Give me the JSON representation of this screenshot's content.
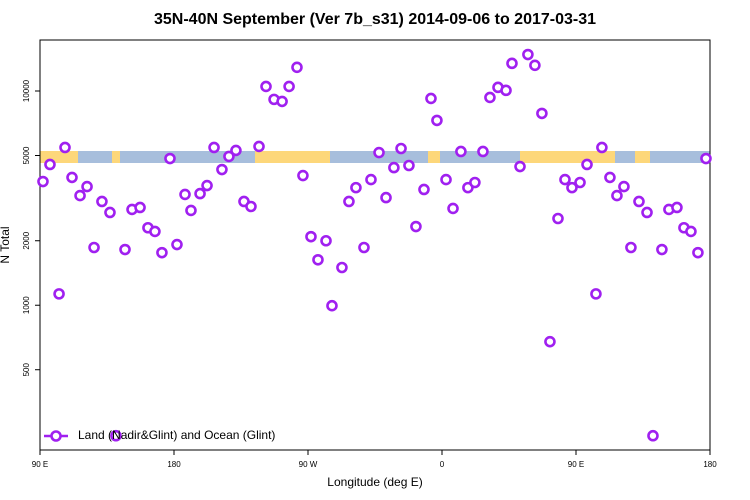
{
  "chart_data": {
    "type": "scatter",
    "title": "35N-40N September (Ver 7b_s31)   2014-09-06 to 2017-03-31",
    "x_label": "Longitude (deg E)",
    "y_label": "N Total",
    "xlim": [
      90,
      540
    ],
    "xticks": [
      {
        "value": 90,
        "label": "90 E"
      },
      {
        "value": 180,
        "label": "180"
      },
      {
        "value": 270,
        "label": "90 W"
      },
      {
        "value": 360,
        "label": "0"
      },
      {
        "value": 450,
        "label": "90 E"
      },
      {
        "value": 540,
        "label": "180"
      }
    ],
    "ylim": [
      211,
      17300
    ],
    "yticks": [
      500,
      1000,
      2000,
      5000,
      10000
    ],
    "ylog": true,
    "legend": "bottomleft",
    "series": [
      {
        "name": "Land (Nadir&Glint) and Ocean (Glint)",
        "color": "#a020f0",
        "x": [
          92.0,
          96.7,
          102.8,
          106.8,
          111.5,
          116.9,
          121.6,
          126.3,
          131.6,
          137.0,
          141.0,
          147.1,
          151.8,
          157.2,
          162.5,
          167.2,
          171.9,
          177.3,
          182.0,
          187.4,
          191.4,
          197.5,
          202.2,
          206.9,
          212.2,
          216.9,
          221.6,
          227.0,
          231.7,
          237.1,
          241.8,
          247.2,
          252.6,
          257.3,
          262.6,
          266.6,
          272.0,
          276.7,
          282.1,
          286.1,
          292.8,
          297.5,
          302.2,
          307.6,
          312.3,
          317.7,
          322.4,
          327.7,
          332.5,
          337.8,
          342.5,
          347.9,
          352.6,
          356.6,
          362.7,
          367.4,
          372.7,
          377.4,
          382.1,
          387.5,
          392.2,
          397.6,
          403.0,
          407.0,
          412.4,
          417.7,
          422.4,
          427.1,
          432.5,
          437.9,
          442.6,
          447.3,
          452.7,
          457.4,
          463.4,
          467.4,
          472.8,
          477.5,
          482.2,
          486.9,
          492.3,
          497.7,
          501.7,
          507.7,
          512.4,
          517.8,
          522.5,
          527.2,
          531.9,
          537.3
        ],
        "values": [
          3780,
          4540,
          1130,
          5450,
          3950,
          3250,
          3580,
          1860,
          3050,
          2710,
          246,
          1820,
          2800,
          2860,
          2300,
          2210,
          1760,
          4840,
          1920,
          3290,
          2770,
          3320,
          3620,
          5450,
          4300,
          4950,
          5280,
          3050,
          2890,
          5510,
          10500,
          9140,
          8940,
          10500,
          12900,
          4030,
          2090,
          1630,
          2000,
          995,
          1500,
          3050,
          3540,
          1860,
          3860,
          5160,
          3180,
          4390,
          5390,
          4490,
          2330,
          3470,
          9230,
          7290,
          3860,
          2830,
          5220,
          3540,
          3740,
          5220,
          9330,
          10400,
          10070,
          13460,
          4440,
          14800,
          13180,
          7860,
          676,
          2540,
          3860,
          3540,
          3740,
          4540,
          1130,
          5450,
          3950,
          3250,
          3580,
          1860,
          3050,
          2710,
          246,
          1820,
          2800,
          2860,
          2300,
          2210,
          1760,
          4840
        ]
      }
    ]
  }
}
